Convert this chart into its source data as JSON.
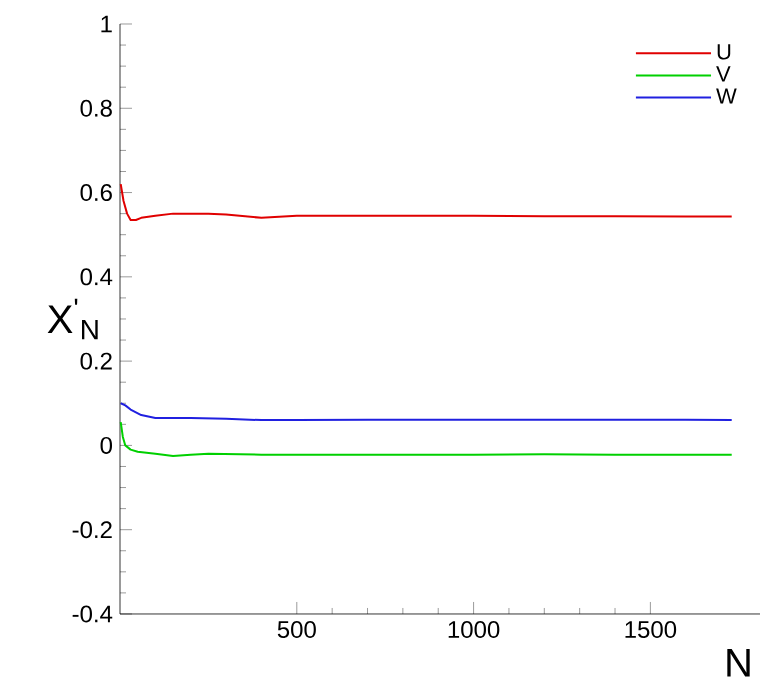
{
  "chart_data": {
    "type": "line",
    "xlabel": "N",
    "ylabel": "X$^{'}$$_{N}$",
    "xlim": [
      0,
      1810
    ],
    "ylim": [
      -0.4,
      1
    ],
    "xticks": [
      500,
      1000,
      1500
    ],
    "yticks": [
      -0.4,
      -0.2,
      0,
      0.2,
      0.4,
      0.6,
      0.8,
      1
    ],
    "grid": false,
    "legend": "top right",
    "marker": "none",
    "line_style": "solid",
    "series": [
      {
        "name": "U",
        "color": "#e00000",
        "x": [
          2,
          10,
          20,
          30,
          45,
          60,
          100,
          150,
          200,
          250,
          300,
          400,
          500,
          600,
          800,
          1000,
          1200,
          1400,
          1600,
          1730
        ],
        "values": [
          0.62,
          0.58,
          0.55,
          0.535,
          0.535,
          0.54,
          0.545,
          0.55,
          0.55,
          0.55,
          0.548,
          0.54,
          0.545,
          0.545,
          0.545,
          0.545,
          0.544,
          0.544,
          0.543,
          0.543
        ]
      },
      {
        "name": "V",
        "color": "#00d000",
        "x": [
          2,
          8,
          15,
          30,
          50,
          100,
          150,
          200,
          250,
          400,
          500,
          700,
          1000,
          1200,
          1400,
          1600,
          1730
        ],
        "values": [
          0.055,
          0.02,
          0.0,
          -0.01,
          -0.015,
          -0.02,
          -0.025,
          -0.022,
          -0.02,
          -0.022,
          -0.022,
          -0.022,
          -0.022,
          -0.021,
          -0.022,
          -0.022,
          -0.022
        ]
      },
      {
        "name": "W",
        "color": "#2020e0",
        "x": [
          2,
          15,
          30,
          60,
          100,
          150,
          200,
          300,
          400,
          500,
          700,
          1000,
          1300,
          1600,
          1730
        ],
        "values": [
          0.1,
          0.095,
          0.085,
          0.072,
          0.065,
          0.065,
          0.065,
          0.063,
          0.06,
          0.06,
          0.061,
          0.061,
          0.061,
          0.061,
          0.06
        ]
      }
    ]
  }
}
